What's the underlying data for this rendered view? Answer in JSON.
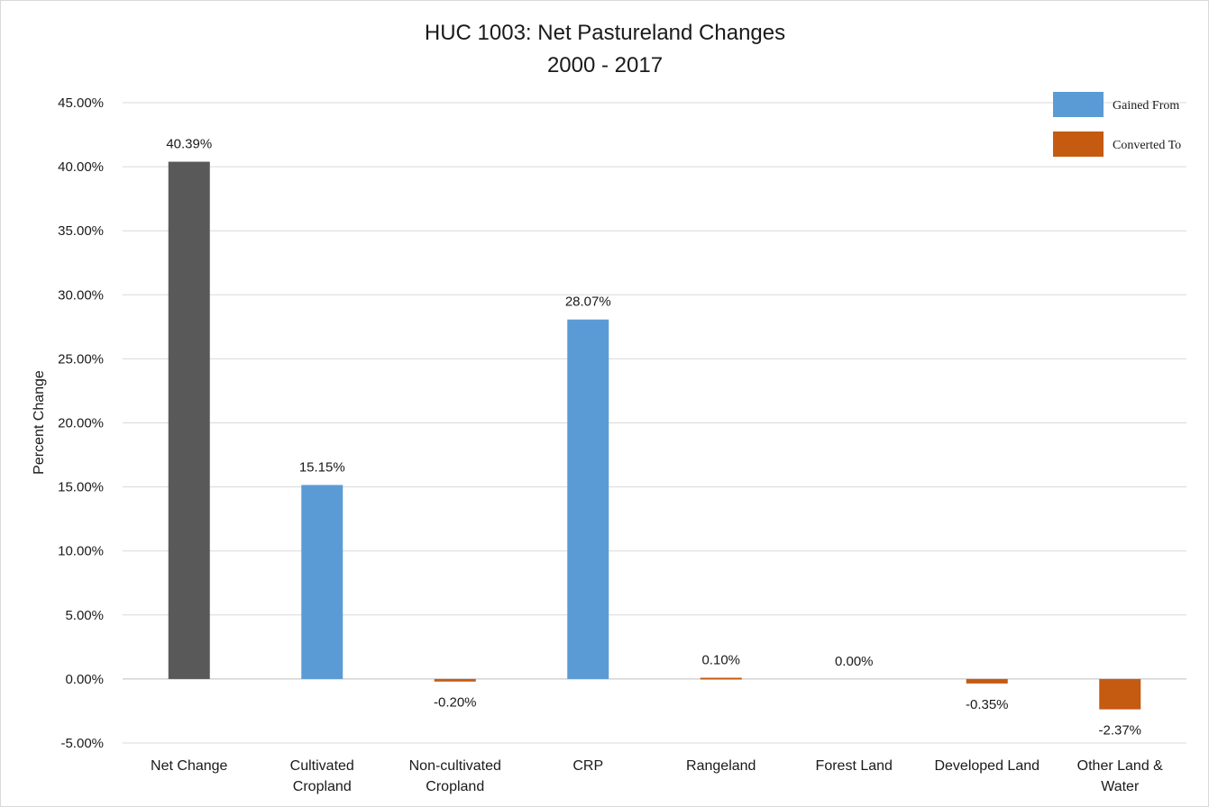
{
  "chart_data": {
    "type": "bar",
    "title": "HUC 1003: Net Pastureland Changes",
    "subtitle": "2000 - 2017",
    "xlabel": "",
    "ylabel": "Percent Change",
    "ylim": [
      -5,
      45
    ],
    "ytick_step": 5,
    "yticks": [
      "45.00%",
      "40.00%",
      "35.00%",
      "30.00%",
      "25.00%",
      "20.00%",
      "15.00%",
      "10.00%",
      "5.00%",
      "0.00%",
      "-5.00%"
    ],
    "grid": true,
    "legend_position": "top-right",
    "categories": [
      [
        "Net Change"
      ],
      [
        "Cultivated",
        "Cropland"
      ],
      [
        "Non-cultivated",
        "Cropland"
      ],
      [
        "CRP"
      ],
      [
        "Rangeland"
      ],
      [
        "Forest Land"
      ],
      [
        "Developed Land"
      ],
      [
        "Other Land &",
        "Water"
      ]
    ],
    "values": [
      40.39,
      15.15,
      -0.2,
      28.07,
      0.1,
      0.0,
      -0.35,
      -2.37
    ],
    "data_labels": [
      "40.39%",
      "15.15%",
      "-0.20%",
      "28.07%",
      "0.10%",
      "0.00%",
      "-0.35%",
      "-2.37%"
    ],
    "bar_kinds": [
      "net",
      "gained",
      "converted",
      "gained",
      "converted",
      "converted",
      "converted",
      "converted"
    ],
    "legend": [
      {
        "label": "Gained From",
        "kind": "gained"
      },
      {
        "label": "Converted To",
        "kind": "converted"
      }
    ],
    "colors": {
      "net": "#595959",
      "gained": "#5b9bd5",
      "converted": "#c55a11",
      "grid": "#d9d9d9"
    }
  }
}
